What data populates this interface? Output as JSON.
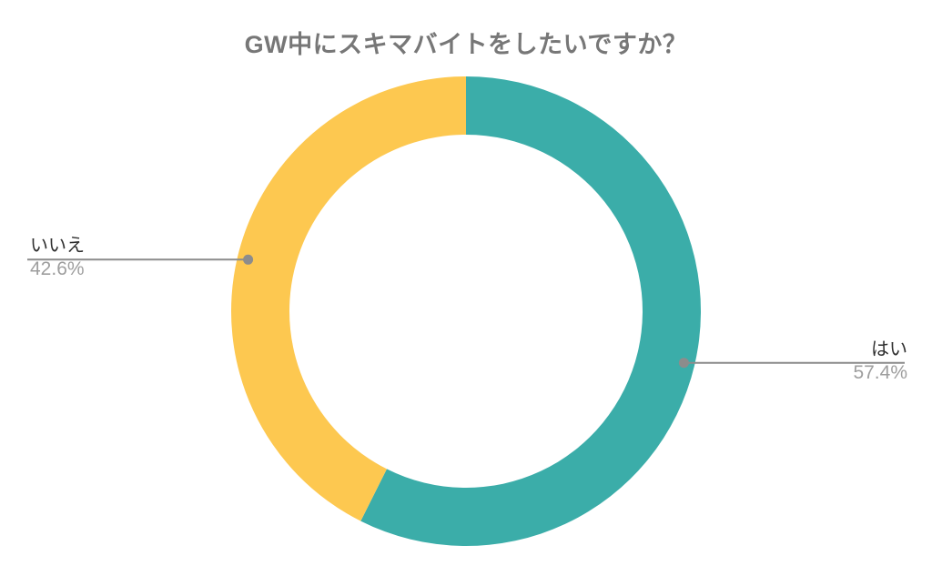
{
  "chart_data": {
    "type": "pie",
    "subtype": "donut",
    "title": "GW中にスキマバイトをしたいですか？",
    "labels": [
      "はい",
      "いいえ"
    ],
    "values": [
      57.4,
      42.6
    ],
    "value_labels": [
      "57.4%",
      "42.6%"
    ],
    "colors": [
      "#3BADA9",
      "#FDC850"
    ],
    "start_angle_deg": 0,
    "direction": "clockwise",
    "inner_radius_ratio": 0.75,
    "legend_position": "none",
    "label_style": "outside-leader-lines",
    "background": "#FFFFFF"
  },
  "style": {
    "title_color": "#777777",
    "label_text_color": "#2f2f2f",
    "percent_text_color": "#9e9e9e",
    "leader_line_color": "#8c8c8c",
    "leader_dot_color": "#8c8c8c"
  }
}
